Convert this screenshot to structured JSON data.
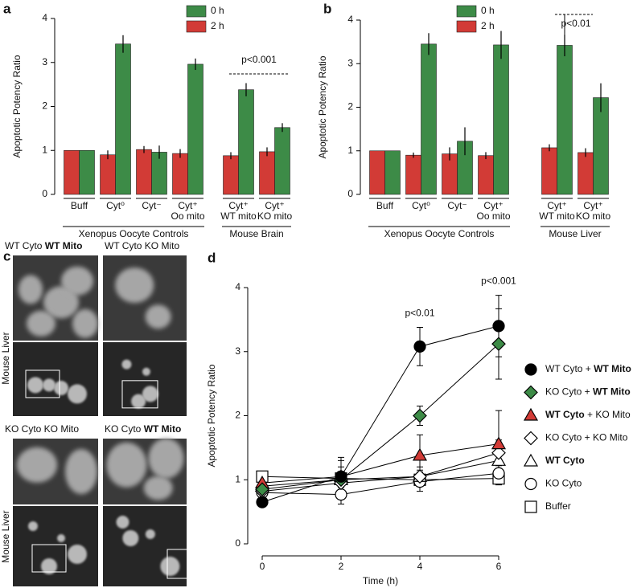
{
  "chart_data": [
    {
      "panel": "a",
      "type": "bar",
      "ylabel": "Apoptotic Potency Ratio",
      "groups": [
        {
          "label": "Xenopus Oocyte Controls",
          "categories": [
            [
              "Buff"
            ],
            [
              "Cyt⁰"
            ],
            [
              "Cyt⁻"
            ],
            [
              "Cyt⁺",
              "Oo mito"
            ]
          ]
        },
        {
          "label": "Mouse Brain",
          "categories": [
            [
              "Cyt⁺",
              "WT mito"
            ],
            [
              "Cyt⁺",
              "KO mito"
            ]
          ]
        }
      ],
      "series": [
        {
          "name": "0 h",
          "color": "#3d8b47",
          "values": [
            1.0,
            3.42,
            0.96,
            2.96,
            2.38,
            1.52
          ],
          "errors": [
            0,
            0.2,
            0.15,
            0.13,
            0.15,
            0.1
          ]
        },
        {
          "name": "2 h",
          "color": "#d23b36",
          "values": [
            1.0,
            0.9,
            1.02,
            0.93,
            0.88,
            0.97
          ],
          "errors": [
            0,
            0.1,
            0.08,
            0.1,
            0.08,
            0.1
          ]
        }
      ],
      "ylim": [
        0,
        4
      ],
      "yticks": [
        0,
        1,
        2,
        3,
        4
      ],
      "annotations": [
        {
          "text": "p<0.001"
        }
      ]
    },
    {
      "panel": "b",
      "type": "bar",
      "ylabel": "Apoptotic Potency Ratio",
      "groups": [
        {
          "label": "Xenopus Oocyte Controls",
          "categories": [
            [
              "Buff"
            ],
            [
              "Cyt⁰"
            ],
            [
              "Cyt⁻"
            ],
            [
              "Cyt⁺",
              "Oo mito"
            ]
          ]
        },
        {
          "label": "Mouse Liver",
          "categories": [
            [
              "Cyt⁺",
              "WT mito"
            ],
            [
              "Cyt⁺",
              "KO mito"
            ]
          ]
        }
      ],
      "series": [
        {
          "name": "0 h",
          "color": "#3d8b47",
          "values": [
            1.0,
            3.45,
            1.22,
            3.43,
            3.42,
            2.22
          ],
          "errors": [
            0,
            0.25,
            0.32,
            0.32,
            0.25,
            0.33
          ]
        },
        {
          "name": "2 h",
          "color": "#d23b36",
          "values": [
            1.0,
            0.9,
            0.93,
            0.89,
            1.07,
            0.96
          ],
          "errors": [
            0,
            0.06,
            0.15,
            0.08,
            0.08,
            0.1
          ]
        }
      ],
      "ylim": [
        0,
        4
      ],
      "yticks": [
        0,
        1,
        2,
        3,
        4
      ],
      "annotations": [
        {
          "text": "p<0.01"
        }
      ]
    },
    {
      "panel": "d",
      "type": "line",
      "xlabel": "Time (h)",
      "ylabel": "Apoptotic Potency Ratio",
      "x": [
        0,
        2,
        4,
        6
      ],
      "xlim": [
        0,
        6
      ],
      "xticks": [
        0,
        2,
        4,
        6
      ],
      "ylim": [
        0,
        4
      ],
      "yticks": [
        0,
        1,
        2,
        3,
        4
      ],
      "series": [
        {
          "name": "WT Cyto + WT Mito",
          "bold": "WT Mito",
          "marker": "circle",
          "color": "#000000",
          "values": [
            0.65,
            1.05,
            3.08,
            3.4
          ],
          "errors": [
            0.05,
            0.3,
            0.3,
            0.48
          ]
        },
        {
          "name": "KO Cyto + WT Mito",
          "bold": "WT Mito",
          "marker": "diamond",
          "color": "#3d8b47",
          "values": [
            0.85,
            1.0,
            2.0,
            3.12
          ],
          "errors": [
            0.08,
            0.2,
            0.15,
            0.55
          ]
        },
        {
          "name": "WT Cyto + KO Mito",
          "bold": "WT Cyto",
          "marker": "triangle",
          "color": "#d23b36",
          "values": [
            0.95,
            1.05,
            1.38,
            1.56
          ],
          "errors": [
            0.08,
            0.25,
            0.32,
            0.52
          ]
        },
        {
          "name": "KO Cyto + KO Mito",
          "marker": "diamond",
          "color": "#ffffff",
          "values": [
            0.82,
            0.95,
            1.05,
            1.42
          ],
          "errors": [
            0.08,
            0.15,
            0.15,
            0.2
          ]
        },
        {
          "name": "WT Cyto",
          "bold": "WT Cyto",
          "marker": "triangle",
          "color": "#ffffff",
          "values": [
            0.9,
            1.0,
            1.05,
            1.3
          ],
          "errors": [
            0.08,
            0.12,
            0.1,
            0.15
          ]
        },
        {
          "name": "KO Cyto",
          "marker": "circle",
          "color": "#ffffff",
          "values": [
            0.8,
            0.77,
            0.97,
            1.1
          ],
          "errors": [
            0.08,
            0.15,
            0.15,
            0.15
          ]
        },
        {
          "name": "Buffer",
          "marker": "square",
          "color": "#ffffff",
          "values": [
            1.05,
            1.02,
            1.0,
            1.02
          ],
          "errors": [
            0.05,
            0.1,
            0.1,
            0.1
          ]
        }
      ],
      "annotations": [
        {
          "text": "p<0.01",
          "x": 4
        },
        {
          "text": "p<0.001",
          "x": 6
        }
      ]
    }
  ],
  "panel_c": {
    "panel": "c",
    "images": [
      {
        "label": "WT Cyto WT Mito",
        "bold": "WT Mito"
      },
      {
        "label": "WT Cyto KO Mito"
      },
      {
        "label": "KO Cyto KO Mito"
      },
      {
        "label": "KO Cyto WT Mito",
        "bold": "WT Mito"
      }
    ],
    "side_labels": [
      "Mouse Liver",
      "Mouse Liver"
    ]
  }
}
